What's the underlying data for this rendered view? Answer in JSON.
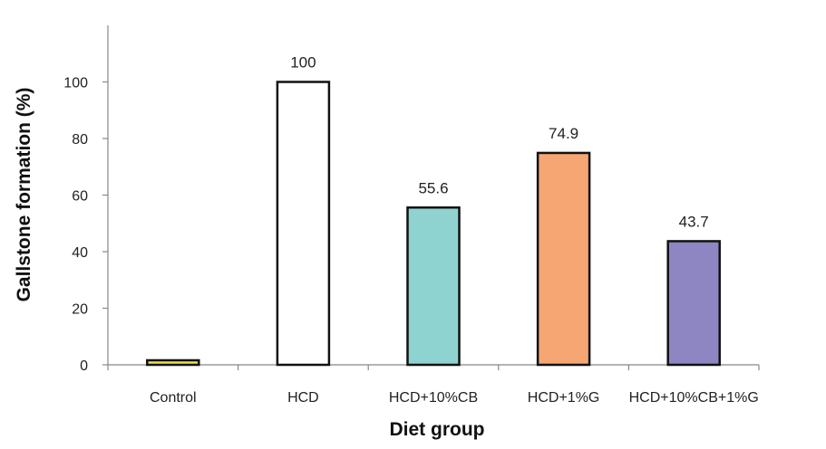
{
  "chart_data": {
    "type": "bar",
    "xlabel": "Diet group",
    "ylabel": "Gallstone formation (%)",
    "categories": [
      "Control",
      "HCD",
      "HCD+10%CB",
      "HCD+1%G",
      "HCD+10%CB+1%G"
    ],
    "values": [
      0,
      100,
      55.6,
      74.9,
      43.7
    ],
    "data_labels": [
      "",
      "100",
      "55.6",
      "74.9",
      "43.7"
    ],
    "colors": [
      "#f0e442",
      "#ffffff",
      "#8ed3cf",
      "#f6a673",
      "#8e86c2"
    ],
    "ylim": [
      0,
      120
    ],
    "yticks": [
      0,
      20,
      40,
      60,
      80,
      100
    ],
    "grid": false,
    "legend": "none"
  }
}
